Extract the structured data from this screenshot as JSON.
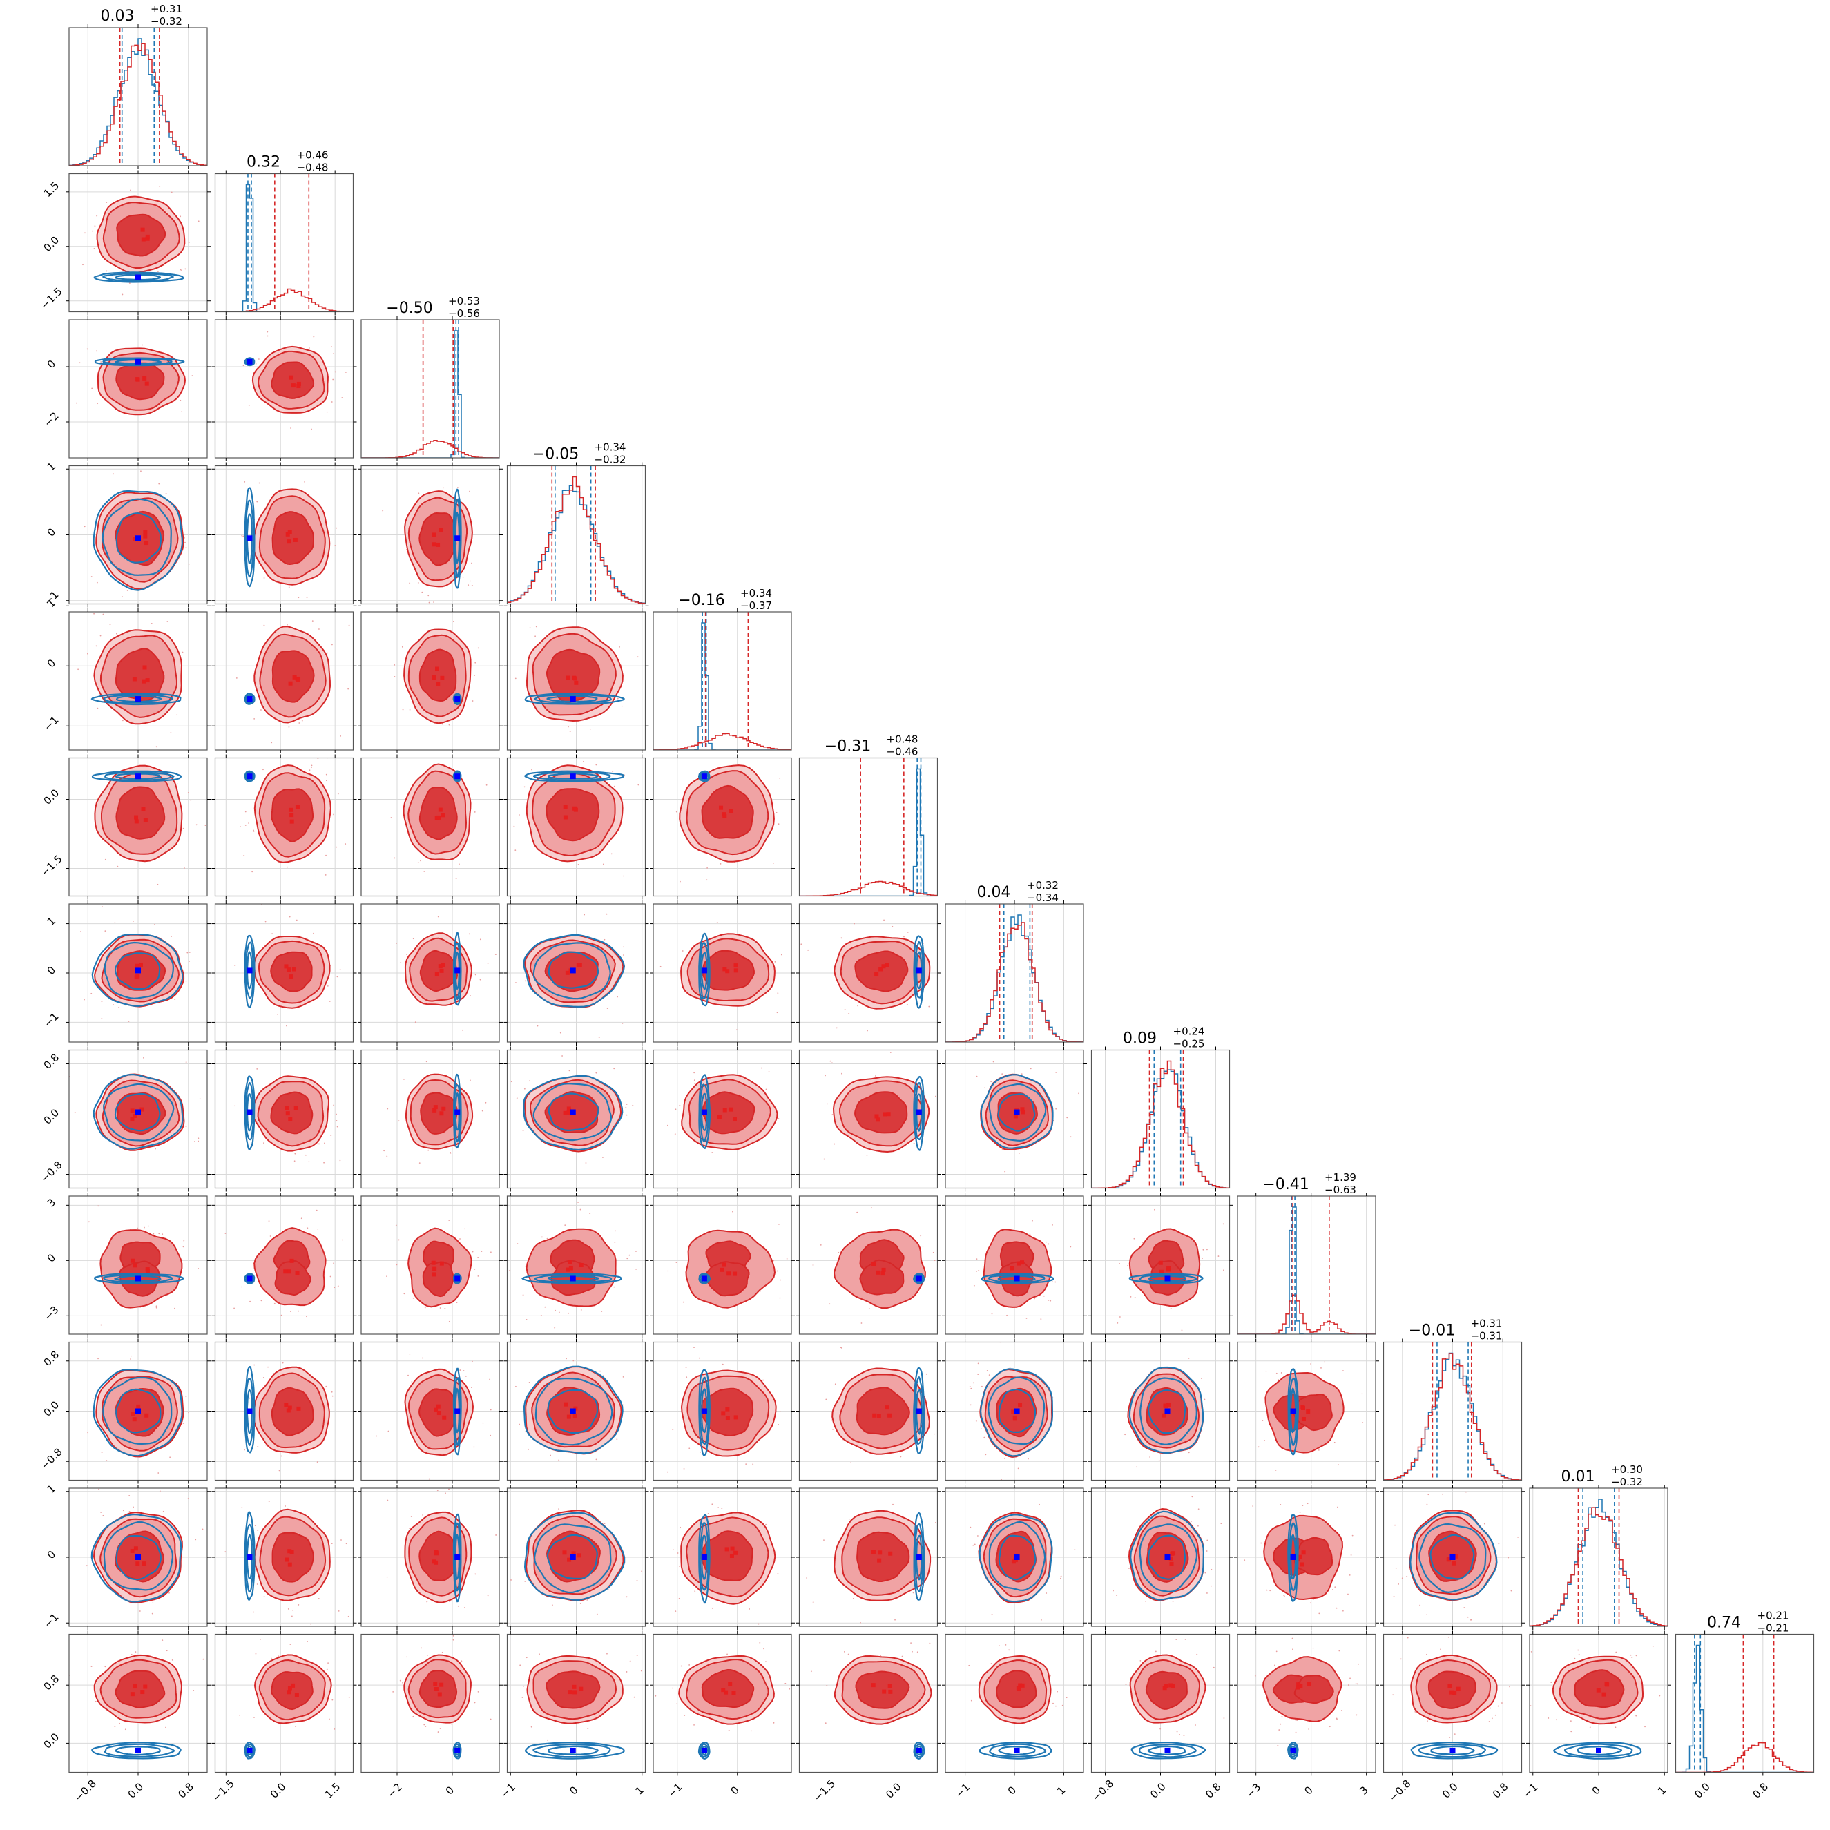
{
  "chart_data": {
    "type": "corner",
    "n_params": 12,
    "colors": {
      "red": "#d62728",
      "blue": "#1f77b4",
      "truth_marker": "#0000ff",
      "red_fill_outer": "#f0a3a4",
      "red_fill_inner": "#d93a3c"
    },
    "grid": true,
    "diagonal_titles": [
      {
        "median": "0.03",
        "plus": "+0.31",
        "minus": "−0.32"
      },
      {
        "median": "0.32",
        "plus": "+0.46",
        "minus": "−0.48"
      },
      {
        "median": "−0.50",
        "plus": "+0.53",
        "minus": "−0.56"
      },
      {
        "median": "−0.05",
        "plus": "+0.34",
        "minus": "−0.32"
      },
      {
        "median": "−0.16",
        "plus": "+0.34",
        "minus": "−0.37"
      },
      {
        "median": "−0.31",
        "plus": "+0.48",
        "minus": "−0.46"
      },
      {
        "median": "0.04",
        "plus": "+0.32",
        "minus": "−0.34"
      },
      {
        "median": "0.09",
        "plus": "+0.24",
        "minus": "−0.25"
      },
      {
        "median": "−0.41",
        "plus": "+1.39",
        "minus": "−0.63"
      },
      {
        "median": "−0.01",
        "plus": "+0.31",
        "minus": "−0.31"
      },
      {
        "median": "0.01",
        "plus": "+0.30",
        "minus": "−0.32"
      },
      {
        "median": "0.74",
        "plus": "+0.21",
        "minus": "−0.21"
      }
    ],
    "x_tick_labels": [
      [
        "−0.8",
        "0.0",
        "0.8"
      ],
      [
        "−1.5",
        "0.0",
        "1.5"
      ],
      [
        "−2",
        "0"
      ],
      [
        "−1",
        "0",
        "1"
      ],
      [
        "−1",
        "0"
      ],
      [
        "−1.5",
        "0.0"
      ],
      [
        "−1",
        "0",
        "1"
      ],
      [
        "−0.8",
        "0.0",
        "0.8"
      ],
      [
        "−3",
        "0",
        "3"
      ],
      [
        "−0.8",
        "0.0",
        "0.8"
      ],
      [
        "−1",
        "0",
        "1"
      ],
      [
        "0.0",
        "0.8"
      ]
    ],
    "y_tick_labels": [
      [],
      [
        "1.5",
        "0.0",
        "−1.5"
      ],
      [
        "0",
        "−2"
      ],
      [
        "1",
        "0",
        "−1"
      ],
      [
        "1",
        "0",
        "−1"
      ],
      [
        "0.0",
        "−1.5"
      ],
      [
        "1",
        "0",
        "−1"
      ],
      [
        "0.8",
        "0.0",
        "−0.8"
      ],
      [
        "3",
        "0",
        "−3"
      ],
      [
        "0.8",
        "0.0",
        "−0.8"
      ],
      [
        "1",
        "0",
        "−1"
      ],
      [
        "0.8",
        "0.0"
      ]
    ],
    "axis_ranges": [
      [
        -1.1,
        1.1
      ],
      [
        -1.8,
        2.0
      ],
      [
        -3.3,
        1.7
      ],
      [
        -1.05,
        1.05
      ],
      [
        -1.4,
        0.9
      ],
      [
        -2.1,
        0.9
      ],
      [
        -1.4,
        1.4
      ],
      [
        -1.0,
        1.0
      ],
      [
        -4.0,
        3.5
      ],
      [
        -1.1,
        1.1
      ],
      [
        -1.05,
        1.05
      ],
      [
        -0.4,
        1.5
      ]
    ],
    "red_posterior": {
      "median": [
        0.03,
        0.32,
        -0.5,
        -0.05,
        -0.16,
        -0.31,
        0.04,
        0.09,
        -0.41,
        -0.01,
        0.01,
        0.74
      ],
      "plus": [
        0.31,
        0.46,
        0.53,
        0.34,
        0.34,
        0.48,
        0.32,
        0.24,
        1.39,
        0.31,
        0.3,
        0.21
      ],
      "minus": [
        0.32,
        0.48,
        0.56,
        0.32,
        0.37,
        0.46,
        0.34,
        0.25,
        0.63,
        0.31,
        0.32,
        0.21
      ]
    },
    "blue_posterior": {
      "center": [
        0.0,
        -0.85,
        0.18,
        -0.05,
        -0.55,
        0.5,
        0.05,
        0.1,
        -0.98,
        0.0,
        0.0,
        -0.1
      ],
      "width": [
        0.32,
        0.06,
        0.06,
        0.34,
        0.04,
        0.05,
        0.33,
        0.24,
        0.12,
        0.31,
        0.3,
        0.05
      ]
    },
    "truth": [
      0.0,
      -0.85,
      0.18,
      -0.05,
      -0.55,
      0.5,
      0.05,
      0.1,
      -0.98,
      0.0,
      0.0,
      -0.1
    ]
  }
}
